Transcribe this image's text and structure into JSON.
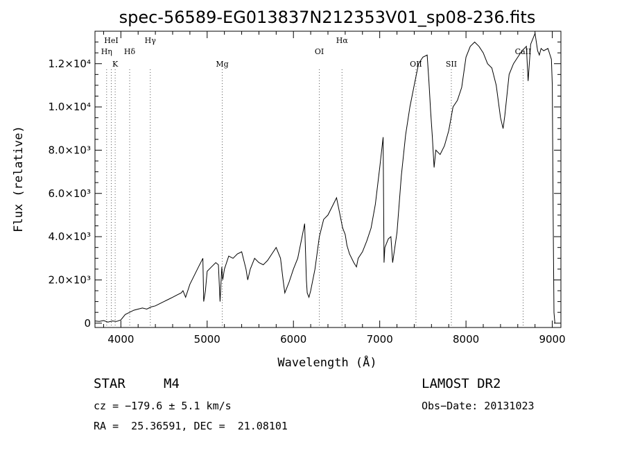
{
  "chart_data": {
    "type": "line",
    "title": "spec-56589-EG013837N212353V01_sp08-236.fits",
    "xlabel": "Wavelength (Å)",
    "ylabel": "Flux (relative)",
    "xlim": [
      3700,
      9100
    ],
    "ylim": [
      -200,
      13500
    ],
    "grid": false,
    "legend": "none",
    "x_ticks": [
      4000,
      5000,
      6000,
      7000,
      8000,
      9000
    ],
    "y_ticks": [
      {
        "value": 0,
        "label": "0"
      },
      {
        "value": 2000,
        "label": "2.0×10³"
      },
      {
        "value": 4000,
        "label": "4.0×10³"
      },
      {
        "value": 6000,
        "label": "6.0×10³"
      },
      {
        "value": 8000,
        "label": "8.0×10³"
      },
      {
        "value": 10000,
        "label": "1.0×10⁴"
      },
      {
        "value": 12000,
        "label": "1.2×10⁴"
      }
    ],
    "spectral_lines": [
      {
        "name": "Hη",
        "wavelength": 3835,
        "row": 2
      },
      {
        "name": "HeI",
        "wavelength": 3889,
        "row": 1
      },
      {
        "name": "K",
        "wavelength": 3934,
        "row": 3
      },
      {
        "name": "Hδ",
        "wavelength": 4102,
        "row": 2
      },
      {
        "name": "Hγ",
        "wavelength": 4341,
        "row": 1
      },
      {
        "name": "Mg",
        "wavelength": 5175,
        "row": 3
      },
      {
        "name": "OI",
        "wavelength": 6300,
        "row": 2
      },
      {
        "name": "Hα",
        "wavelength": 6563,
        "row": 1
      },
      {
        "name": "OII",
        "wavelength": 7420,
        "row": 3
      },
      {
        "name": "SII",
        "wavelength": 7830,
        "row": 3
      },
      {
        "name": "CaII",
        "wavelength": 8662,
        "row": 2
      }
    ],
    "series": [
      {
        "x": [
          3700,
          3750,
          3800,
          3850,
          3900,
          3950,
          4000,
          4050,
          4100,
          4150,
          4200,
          4250,
          4300,
          4350,
          4400,
          4450,
          4500,
          4550,
          4600,
          4650,
          4700,
          4720,
          4750,
          4800,
          4850,
          4900,
          4950,
          4960,
          4980,
          5000,
          5050,
          5100,
          5130,
          5150,
          5170,
          5180,
          5200,
          5250,
          5300,
          5350,
          5400,
          5450,
          5470,
          5500,
          5550,
          5600,
          5650,
          5700,
          5750,
          5800,
          5850,
          5880,
          5900,
          5950,
          6000,
          6050,
          6100,
          6130,
          6150,
          6160,
          6180,
          6200,
          6250,
          6300,
          6350,
          6400,
          6450,
          6500,
          6530,
          6550,
          6570,
          6600,
          6620,
          6650,
          6700,
          6730,
          6750,
          6800,
          6850,
          6900,
          6950,
          7000,
          7040,
          7050,
          7060,
          7100,
          7130,
          7150,
          7200,
          7250,
          7300,
          7350,
          7400,
          7450,
          7500,
          7550,
          7570,
          7590,
          7610,
          7630,
          7650,
          7700,
          7750,
          7800,
          7850,
          7900,
          7950,
          8000,
          8050,
          8100,
          8150,
          8200,
          8250,
          8300,
          8350,
          8400,
          8430,
          8450,
          8500,
          8550,
          8600,
          8650,
          8700,
          8720,
          8750,
          8800,
          8830,
          8850,
          8870,
          8900,
          8950,
          8990,
          9000,
          9010,
          9020,
          9030
        ],
        "y": [
          100,
          80,
          120,
          50,
          100,
          80,
          150,
          400,
          500,
          600,
          650,
          700,
          650,
          750,
          800,
          900,
          1000,
          1100,
          1200,
          1300,
          1400,
          1500,
          1200,
          1800,
          2200,
          2600,
          3000,
          1000,
          1500,
          2400,
          2600,
          2800,
          2700,
          1000,
          2600,
          2000,
          2500,
          3100,
          3000,
          3200,
          3300,
          2500,
          2000,
          2500,
          3000,
          2800,
          2700,
          2900,
          3200,
          3500,
          3000,
          2000,
          1400,
          1900,
          2500,
          3000,
          4000,
          4600,
          2000,
          1400,
          1200,
          1500,
          2500,
          4000,
          4800,
          5000,
          5400,
          5800,
          5200,
          4800,
          4400,
          4100,
          3600,
          3200,
          2800,
          2600,
          3000,
          3300,
          3800,
          4400,
          5500,
          7200,
          8600,
          2800,
          3500,
          3900,
          4000,
          2800,
          4200,
          6800,
          8700,
          10000,
          11000,
          12000,
          12300,
          12400,
          11200,
          9800,
          8600,
          7200,
          8000,
          7800,
          8200,
          8900,
          10000,
          10300,
          10900,
          12300,
          12800,
          13000,
          12800,
          12500,
          12000,
          11800,
          11000,
          9500,
          9000,
          9600,
          11500,
          12000,
          12300,
          12600,
          12800,
          11200,
          12900,
          13400,
          12600,
          12400,
          12700,
          12600,
          12700,
          12200,
          11000,
          5000,
          500,
          0
        ]
      }
    ]
  },
  "footer": {
    "object_class": "STAR",
    "subclass": "M4",
    "survey": "LAMOST DR2",
    "cz": "cz = −179.6 ± 5.1 km/s",
    "obs_date": "Obs−Date: 20131023",
    "coords": "RA =  25.36591, DEC =  21.08101"
  }
}
